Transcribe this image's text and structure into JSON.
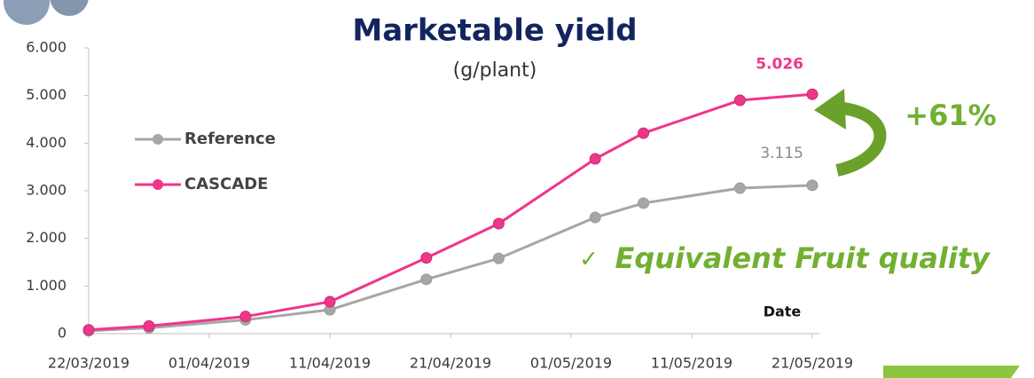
{
  "chart_data": {
    "type": "line",
    "title": "Marketable yield",
    "subtitle": "(g/plant)",
    "x_label": "Date",
    "annotations": [
      "+61%",
      "Equivalent Fruit quality"
    ],
    "x": [
      "22/03/2019",
      "27/03/2019",
      "04/04/2019",
      "11/04/2019",
      "19/04/2019",
      "25/04/2019",
      "03/05/2019",
      "07/05/2019",
      "15/05/2019",
      "21/05/2019"
    ],
    "series": [
      {
        "name": "Reference",
        "color": "#a6a6a6",
        "values": [
          60,
          120,
          290,
          500,
          1140,
          1580,
          2440,
          2740,
          3055,
          3115
        ],
        "value_labels": [
          null,
          null,
          null,
          null,
          null,
          null,
          null,
          null,
          null,
          "3.115"
        ]
      },
      {
        "name": "CASCADE",
        "color": "#f0358a",
        "values": [
          80,
          160,
          360,
          670,
          1590,
          2310,
          3670,
          4210,
          4900,
          5026
        ],
        "value_labels": [
          null,
          null,
          null,
          null,
          null,
          null,
          null,
          null,
          null,
          "5.026"
        ]
      }
    ],
    "xlim": [
      "22/03/2019",
      "21/05/2019"
    ],
    "xticks": [
      "22/03/2019",
      "01/04/2019",
      "11/04/2019",
      "21/04/2019",
      "01/05/2019",
      "11/05/2019",
      "21/05/2019"
    ],
    "ylim": [
      0,
      6000
    ],
    "yticks": [
      0,
      {
        "value": 1000,
        "label": "1.000"
      },
      {
        "value": 2000,
        "label": "2.000"
      },
      {
        "value": 3000,
        "label": "3.000"
      },
      {
        "value": 4000,
        "label": "4.000"
      },
      {
        "value": 5000,
        "label": "5.000"
      },
      {
        "value": 6000,
        "label": "6.000"
      }
    ],
    "grid": false,
    "legend": "left"
  }
}
